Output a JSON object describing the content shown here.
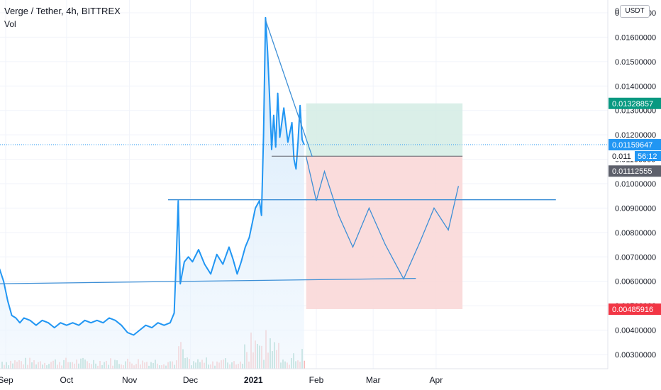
{
  "header": {
    "title": "Verge / Tether, 4h, BITTREX",
    "vol_label": "Vol"
  },
  "currency_button": "USDT",
  "price_labels": {
    "take_profit": "0.01328857",
    "current": "0.01159647",
    "countdown_price": "0.011",
    "countdown": "56:12",
    "entry": "0.01112555",
    "stop": "0.00485916",
    "top_partial": "0.01 00"
  },
  "colors": {
    "line": "#2196f3",
    "drawing": "#3d8fd6",
    "profit_fill": "#d4ece4",
    "loss_fill": "#f9d6d6",
    "tp_label": "#089981",
    "current_label": "#2196f3",
    "entry_label": "#5d606b",
    "stop_label": "#f23645",
    "vol_up": "#7fc3b2",
    "vol_down": "#f7a9a7",
    "grid": "#f0f3fa"
  },
  "chart_data": {
    "type": "line",
    "title": "Verge / Tether, 4h, BITTREX",
    "x_tick_labels": [
      "Sep",
      "Oct",
      "Nov",
      "Dec",
      "2021",
      "Feb",
      "Mar",
      "Apr"
    ],
    "y_tick_labels": [
      "0.01700000",
      "0.01600000",
      "0.01500000",
      "0.01400000",
      "0.01300000",
      "0.01200000",
      "0.01100000",
      "0.01000000",
      "0.00900000",
      "0.00800000",
      "0.00700000",
      "0.00600000",
      "0.00500000",
      "0.00400000",
      "0.00300000"
    ],
    "ylim": [
      0.0021,
      0.0189
    ],
    "grid": true,
    "series": [
      {
        "values": [
          [
            "2020-08-25",
            0.0066
          ],
          [
            "2020-08-27",
            0.0068
          ],
          [
            "2020-08-29",
            0.0065
          ],
          [
            "2020-08-31",
            0.006
          ],
          [
            "2020-09-02",
            0.0052
          ],
          [
            "2020-09-04",
            0.0046
          ],
          [
            "2020-09-06",
            0.0045
          ],
          [
            "2020-09-08",
            0.0043
          ],
          [
            "2020-09-10",
            0.0045
          ],
          [
            "2020-09-13",
            0.0044
          ],
          [
            "2020-09-16",
            0.0042
          ],
          [
            "2020-09-19",
            0.0044
          ],
          [
            "2020-09-22",
            0.0043
          ],
          [
            "2020-09-25",
            0.0041
          ],
          [
            "2020-09-28",
            0.0043
          ],
          [
            "2020-10-01",
            0.0042
          ],
          [
            "2020-10-04",
            0.0043
          ],
          [
            "2020-10-07",
            0.0042
          ],
          [
            "2020-10-10",
            0.0044
          ],
          [
            "2020-10-13",
            0.0043
          ],
          [
            "2020-10-16",
            0.0044
          ],
          [
            "2020-10-19",
            0.0043
          ],
          [
            "2020-10-22",
            0.0045
          ],
          [
            "2020-10-25",
            0.0044
          ],
          [
            "2020-10-28",
            0.0042
          ],
          [
            "2020-10-31",
            0.0039
          ],
          [
            "2020-11-03",
            0.0038
          ],
          [
            "2020-11-06",
            0.004
          ],
          [
            "2020-11-09",
            0.0042
          ],
          [
            "2020-11-12",
            0.0041
          ],
          [
            "2020-11-15",
            0.0043
          ],
          [
            "2020-11-18",
            0.0042
          ],
          [
            "2020-11-21",
            0.0043
          ],
          [
            "2020-11-23",
            0.0047
          ],
          [
            "2020-11-24",
            0.0069
          ],
          [
            "2020-11-25",
            0.0093
          ],
          [
            "2020-11-26",
            0.0059
          ],
          [
            "2020-11-28",
            0.0068
          ],
          [
            "2020-11-30",
            0.007
          ],
          [
            "2020-12-02",
            0.0068
          ],
          [
            "2020-12-05",
            0.0073
          ],
          [
            "2020-12-08",
            0.0067
          ],
          [
            "2020-12-11",
            0.0063
          ],
          [
            "2020-12-14",
            0.0071
          ],
          [
            "2020-12-17",
            0.0067
          ],
          [
            "2020-12-20",
            0.0074
          ],
          [
            "2020-12-22",
            0.0069
          ],
          [
            "2020-12-24",
            0.0063
          ],
          [
            "2020-12-26",
            0.0068
          ],
          [
            "2020-12-28",
            0.0074
          ],
          [
            "2020-12-30",
            0.0078
          ],
          [
            "2021-01-02",
            0.009
          ],
          [
            "2021-01-04",
            0.0093
          ],
          [
            "2021-01-05",
            0.0087
          ],
          [
            "2021-01-06",
            0.012
          ],
          [
            "2021-01-07",
            0.0168
          ],
          [
            "2021-01-08",
            0.0154
          ],
          [
            "2021-01-09",
            0.0135
          ],
          [
            "2021-01-10",
            0.0114
          ],
          [
            "2021-01-11",
            0.0128
          ],
          [
            "2021-01-12",
            0.0115
          ],
          [
            "2021-01-13",
            0.0137
          ],
          [
            "2021-01-14",
            0.0119
          ],
          [
            "2021-01-16",
            0.0131
          ],
          [
            "2021-01-18",
            0.0117
          ],
          [
            "2021-01-20",
            0.0125
          ],
          [
            "2021-01-21",
            0.011
          ],
          [
            "2021-01-22",
            0.0106
          ],
          [
            "2021-01-23",
            0.0117
          ],
          [
            "2021-01-24",
            0.0132
          ],
          [
            "2021-01-25",
            0.0118
          ],
          [
            "2021-01-26",
            0.0116
          ]
        ]
      }
    ],
    "position": {
      "entry": 0.01112555,
      "take_profit": 0.01328857,
      "stop": 0.00485916
    },
    "drawings": {
      "projection_path": [
        [
          "2021-01-27",
          0.0111
        ],
        [
          "2021-02-01",
          0.0093
        ],
        [
          "2021-02-05",
          0.0105
        ],
        [
          "2021-02-12",
          0.0087
        ],
        [
          "2021-02-19",
          0.0074
        ],
        [
          "2021-02-27",
          0.009
        ],
        [
          "2021-03-07",
          0.0075
        ],
        [
          "2021-03-16",
          0.0061
        ],
        [
          "2021-03-24",
          0.0076
        ],
        [
          "2021-03-31",
          0.009
        ],
        [
          "2021-04-07",
          0.0081
        ],
        [
          "2021-04-12",
          0.0099
        ]
      ],
      "support_line": [
        [
          "2020-08-28",
          0.0059
        ],
        [
          "2021-03-22",
          0.00612
        ]
      ],
      "resistance_line": [
        [
          "2020-11-20",
          0.00934
        ],
        [
          "2021-05-30",
          0.00934
        ]
      ],
      "trend_line": [
        [
          "2021-01-07",
          0.0167
        ],
        [
          "2021-01-30",
          0.0111
        ]
      ],
      "current_price_line": 0.01159647
    },
    "volume_note": "volume histogram shown without axis values"
  }
}
